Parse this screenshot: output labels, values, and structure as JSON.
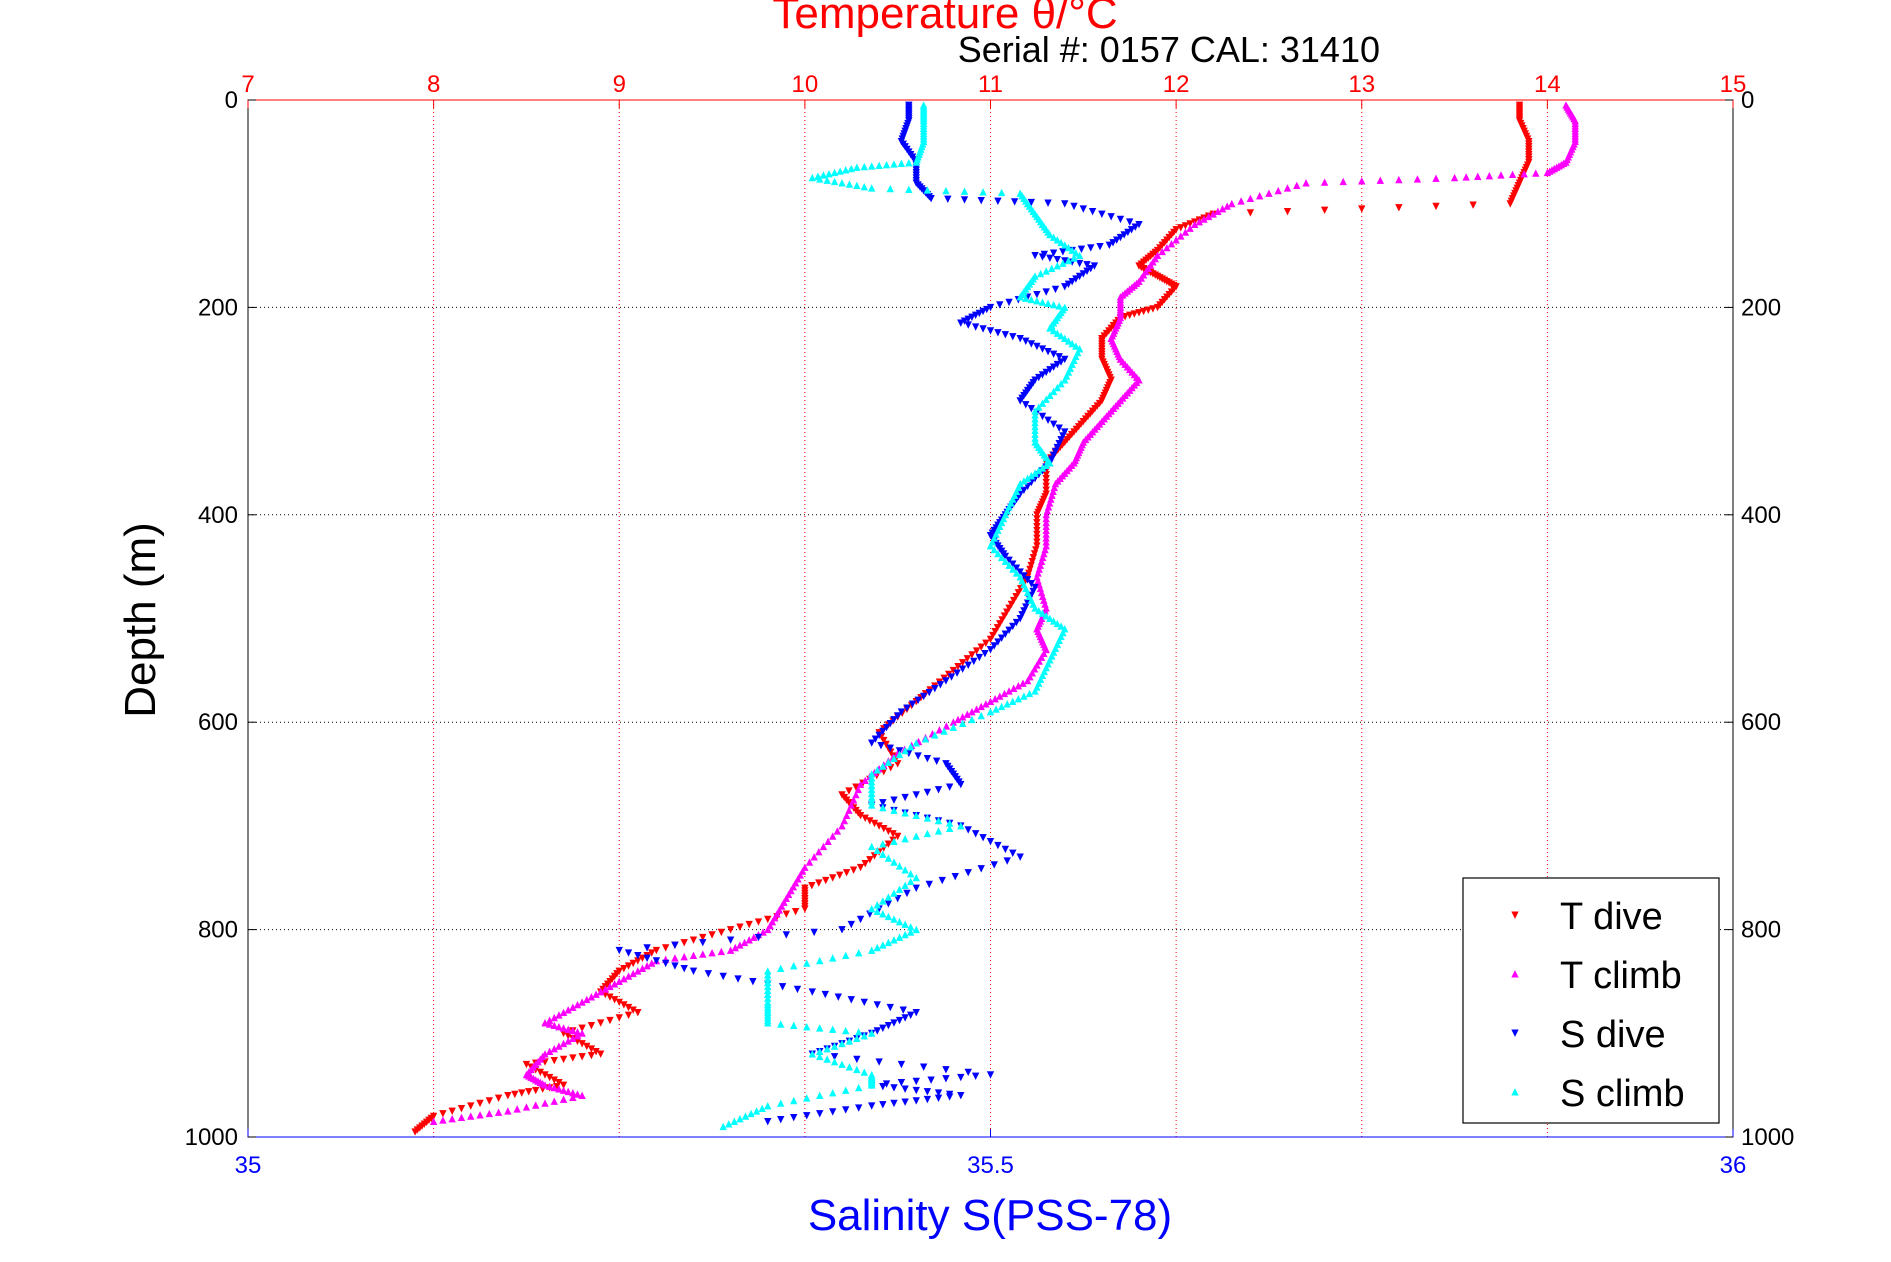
{
  "chart_data": {
    "type": "scatter",
    "title": "Temperature θ/°C",
    "subtitle": "Serial #: 0157  CAL: 31410",
    "ylabel": "Depth (m)",
    "xlabel_bottom": "Salinity S(PSS-78)",
    "xlim_top": [
      7,
      15
    ],
    "xlim_bottom": [
      35,
      36
    ],
    "ylim": [
      0,
      1000
    ],
    "y_reversed": true,
    "x_ticks_top": [
      "7",
      "8",
      "9",
      "10",
      "11",
      "12",
      "13",
      "14",
      "15"
    ],
    "x_ticks_bottom": [
      "35",
      "35.5",
      "36"
    ],
    "y_ticks": [
      "0",
      "200",
      "400",
      "600",
      "800",
      "1000"
    ],
    "grid": true,
    "legend_position": "bottom-right",
    "colors": {
      "temperature_axis": "#ff0000",
      "salinity_axis": "#0000ff",
      "grid_vertical": "#ff0000",
      "grid_horizontal": "#000000"
    },
    "series": [
      {
        "name": "T dive",
        "axis": "temperature",
        "color": "#ff0000",
        "marker": "triangle-down",
        "x": [
          13.85,
          13.85,
          13.9,
          13.9,
          13.85,
          13.8,
          12.2,
          12.0,
          11.9,
          11.8,
          11.9,
          12.0,
          11.9,
          11.7,
          11.6,
          11.6,
          11.65,
          11.6,
          11.5,
          11.4,
          11.3,
          11.3,
          11.25,
          11.25,
          11.2,
          11.1,
          11.0,
          10.8,
          10.6,
          10.4,
          10.5,
          10.2,
          10.3,
          10.5,
          10.3,
          10.0,
          10.0,
          9.6,
          9.2,
          9.0,
          8.9,
          9.1,
          8.7,
          8.9,
          8.5,
          8.7,
          8.4,
          8.0,
          7.9
        ],
        "y": [
          5,
          20,
          40,
          60,
          80,
          100,
          110,
          125,
          145,
          160,
          170,
          180,
          200,
          210,
          230,
          250,
          270,
          290,
          310,
          330,
          350,
          380,
          400,
          430,
          460,
          490,
          520,
          550,
          580,
          610,
          640,
          670,
          690,
          710,
          740,
          760,
          780,
          800,
          820,
          840,
          860,
          880,
          900,
          920,
          930,
          950,
          960,
          980,
          995
        ]
      },
      {
        "name": "T climb",
        "axis": "temperature",
        "color": "#ff00ff",
        "marker": "triangle-up",
        "x": [
          14.1,
          14.15,
          14.15,
          14.1,
          14.0,
          13.5,
          12.7,
          12.3,
          12.1,
          11.9,
          11.8,
          11.7,
          11.7,
          11.65,
          11.7,
          11.8,
          11.7,
          11.6,
          11.5,
          11.45,
          11.35,
          11.3,
          11.3,
          11.25,
          11.3,
          11.25,
          11.3,
          11.2,
          11.0,
          10.8,
          10.5,
          10.3,
          10.2,
          10.0,
          9.9,
          9.8,
          9.6,
          9.2,
          9.0,
          8.8,
          8.6,
          8.8,
          8.6,
          8.5,
          8.6,
          8.8,
          8.4,
          8.0
        ],
        "y": [
          5,
          20,
          40,
          60,
          70,
          75,
          80,
          100,
          120,
          150,
          175,
          190,
          210,
          230,
          250,
          270,
          290,
          310,
          330,
          350,
          370,
          400,
          430,
          460,
          490,
          510,
          530,
          560,
          580,
          600,
          630,
          660,
          700,
          740,
          770,
          800,
          820,
          830,
          850,
          870,
          890,
          900,
          920,
          940,
          950,
          960,
          975,
          985
        ]
      },
      {
        "name": "S dive",
        "axis": "salinity",
        "color": "#0000ff",
        "marker": "triangle-down",
        "x": [
          35.445,
          35.445,
          35.44,
          35.45,
          35.45,
          35.46,
          35.55,
          35.6,
          35.58,
          35.53,
          35.57,
          35.55,
          35.5,
          35.48,
          35.52,
          35.55,
          35.53,
          35.52,
          35.55,
          35.54,
          35.52,
          35.51,
          35.5,
          35.51,
          35.53,
          35.52,
          35.5,
          35.47,
          35.44,
          35.42,
          35.47,
          35.48,
          35.42,
          35.48,
          35.52,
          35.45,
          35.4,
          35.25,
          35.3,
          35.38,
          35.45,
          35.42,
          35.38,
          35.5,
          35.42,
          35.48,
          35.42,
          35.35
        ],
        "y": [
          5,
          20,
          40,
          60,
          80,
          95,
          100,
          120,
          140,
          150,
          160,
          180,
          200,
          215,
          230,
          250,
          270,
          290,
          320,
          350,
          380,
          400,
          420,
          440,
          470,
          500,
          530,
          560,
          590,
          620,
          640,
          660,
          680,
          700,
          730,
          760,
          800,
          820,
          840,
          860,
          880,
          900,
          920,
          940,
          950,
          960,
          970,
          985
        ]
      },
      {
        "name": "S climb",
        "axis": "salinity",
        "color": "#00ffff",
        "marker": "triangle-up",
        "x": [
          35.455,
          35.455,
          35.455,
          35.45,
          35.41,
          35.38,
          35.42,
          35.52,
          35.53,
          35.54,
          35.56,
          35.53,
          35.52,
          35.55,
          35.54,
          35.56,
          35.55,
          35.53,
          35.53,
          35.54,
          35.52,
          35.51,
          35.5,
          35.52,
          35.53,
          35.55,
          35.54,
          35.53,
          35.5,
          35.45,
          35.42,
          35.42,
          35.48,
          35.42,
          35.45,
          35.42,
          35.45,
          35.42,
          35.35,
          35.35,
          35.35,
          35.42,
          35.38,
          35.42,
          35.42,
          35.35,
          35.32
        ],
        "y": [
          5,
          20,
          40,
          60,
          65,
          75,
          85,
          90,
          110,
          130,
          150,
          170,
          190,
          200,
          220,
          240,
          270,
          300,
          330,
          350,
          370,
          400,
          430,
          460,
          490,
          510,
          540,
          570,
          590,
          620,
          650,
          680,
          700,
          720,
          750,
          780,
          800,
          820,
          840,
          870,
          890,
          900,
          920,
          940,
          950,
          970,
          990
        ]
      }
    ]
  }
}
